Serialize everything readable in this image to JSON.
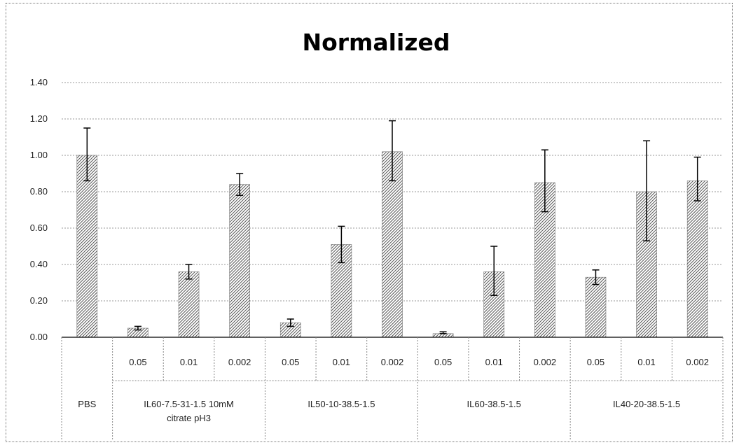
{
  "chart_data": {
    "type": "bar",
    "title": "Normalized",
    "xlabel": "",
    "ylabel": "",
    "ylim": [
      0,
      1.4
    ],
    "yticks": [
      "0.00",
      "0.20",
      "0.40",
      "0.60",
      "0.80",
      "1.00",
      "1.20",
      "1.40"
    ],
    "grid": true,
    "legend": "none",
    "bar_fill": "diagonal-hatch",
    "bar_color": "#555555",
    "categories": [
      "",
      "0.05",
      "0.01",
      "0.002",
      "0.05",
      "0.01",
      "0.002",
      "0.05",
      "0.01",
      "0.002",
      "0.05",
      "0.01",
      "0.002"
    ],
    "values": [
      1.0,
      0.05,
      0.36,
      0.84,
      0.08,
      0.51,
      1.02,
      0.02,
      0.36,
      0.85,
      0.33,
      0.8,
      0.86
    ],
    "error_low": [
      0.86,
      0.04,
      0.32,
      0.78,
      0.06,
      0.41,
      0.86,
      0.02,
      0.23,
      0.69,
      0.29,
      0.53,
      0.75
    ],
    "error_high": [
      1.15,
      0.06,
      0.4,
      0.9,
      0.1,
      0.61,
      1.19,
      0.03,
      0.5,
      1.03,
      0.37,
      1.08,
      0.99
    ],
    "groups": [
      {
        "label_lines": [
          "PBS"
        ],
        "count": 1
      },
      {
        "label_lines": [
          "IL60-7.5-31-1.5 10mM",
          "citrate pH3"
        ],
        "count": 3
      },
      {
        "label_lines": [
          "IL50-10-38.5-1.5"
        ],
        "count": 3
      },
      {
        "label_lines": [
          "IL60-38.5-1.5"
        ],
        "count": 3
      },
      {
        "label_lines": [
          "IL40-20-38.5-1.5"
        ],
        "count": 3
      }
    ]
  }
}
